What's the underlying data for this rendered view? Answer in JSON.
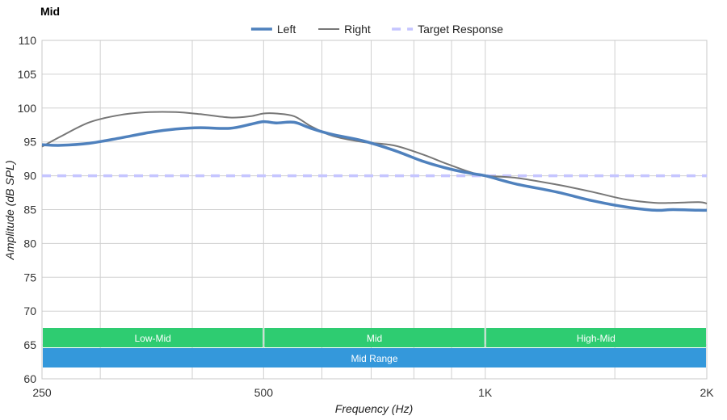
{
  "chart_data": {
    "type": "line",
    "title": "Mid",
    "xlabel": "Frequency (Hz)",
    "ylabel": "Amplitude (dB SPL)",
    "x_scale": "log",
    "xlim": [
      250,
      2000
    ],
    "ylim": [
      60,
      110
    ],
    "x_ticks": [
      {
        "value": 250,
        "label": "250"
      },
      {
        "value": 500,
        "label": "500"
      },
      {
        "value": 1000,
        "label": "1K"
      },
      {
        "value": 2000,
        "label": "2K"
      }
    ],
    "x_grid": [
      300,
      400,
      600,
      700,
      800,
      900,
      1500
    ],
    "y_ticks": [
      60,
      65,
      70,
      75,
      80,
      85,
      90,
      95,
      100,
      105,
      110
    ],
    "grid": true,
    "legend_position": "top-center",
    "series": [
      {
        "name": "Left",
        "color": "#4f81bd",
        "style": "solid-thick",
        "x": [
          250,
          265,
          290,
          320,
          350,
          380,
          410,
          450,
          480,
          500,
          520,
          550,
          580,
          620,
          680,
          750,
          820,
          880,
          950,
          1000,
          1100,
          1250,
          1400,
          1550,
          1700,
          1800,
          1950,
          2000
        ],
        "y": [
          94.6,
          94.5,
          94.8,
          95.6,
          96.4,
          96.9,
          97.1,
          97.0,
          97.6,
          98.0,
          97.8,
          97.9,
          97.0,
          96.1,
          95.2,
          93.8,
          92.2,
          91.2,
          90.4,
          90.0,
          88.8,
          87.6,
          86.3,
          85.4,
          84.9,
          85.0,
          84.9,
          84.9
        ]
      },
      {
        "name": "Right",
        "color": "#777777",
        "style": "solid-thin",
        "x": [
          250,
          265,
          290,
          320,
          350,
          380,
          410,
          450,
          480,
          500,
          520,
          550,
          580,
          620,
          680,
          750,
          820,
          880,
          950,
          1000,
          1100,
          1250,
          1400,
          1550,
          1700,
          1800,
          1950,
          2000
        ],
        "y": [
          94.3,
          95.8,
          97.9,
          99.0,
          99.4,
          99.4,
          99.1,
          98.6,
          98.8,
          99.2,
          99.2,
          98.8,
          97.3,
          95.9,
          95.0,
          94.5,
          93.2,
          91.9,
          90.6,
          90.0,
          89.7,
          88.7,
          87.6,
          86.5,
          86.0,
          86.0,
          86.1,
          85.9
        ]
      },
      {
        "name": "Target Response",
        "color": "#c5c5ff",
        "style": "dashed",
        "x": [
          250,
          2000
        ],
        "y": [
          90,
          90
        ]
      }
    ],
    "bands": [
      {
        "label": "Low-Mid",
        "from": 250,
        "to": 500,
        "color": "#2ecc71",
        "row": 0
      },
      {
        "label": "Mid",
        "from": 500,
        "to": 1000,
        "color": "#2ecc71",
        "row": 0
      },
      {
        "label": "High-Mid",
        "from": 1000,
        "to": 2000,
        "color": "#2ecc71",
        "row": 0
      },
      {
        "label": "Mid Range",
        "from": 250,
        "to": 2000,
        "color": "#3498db",
        "row": 1
      }
    ]
  }
}
